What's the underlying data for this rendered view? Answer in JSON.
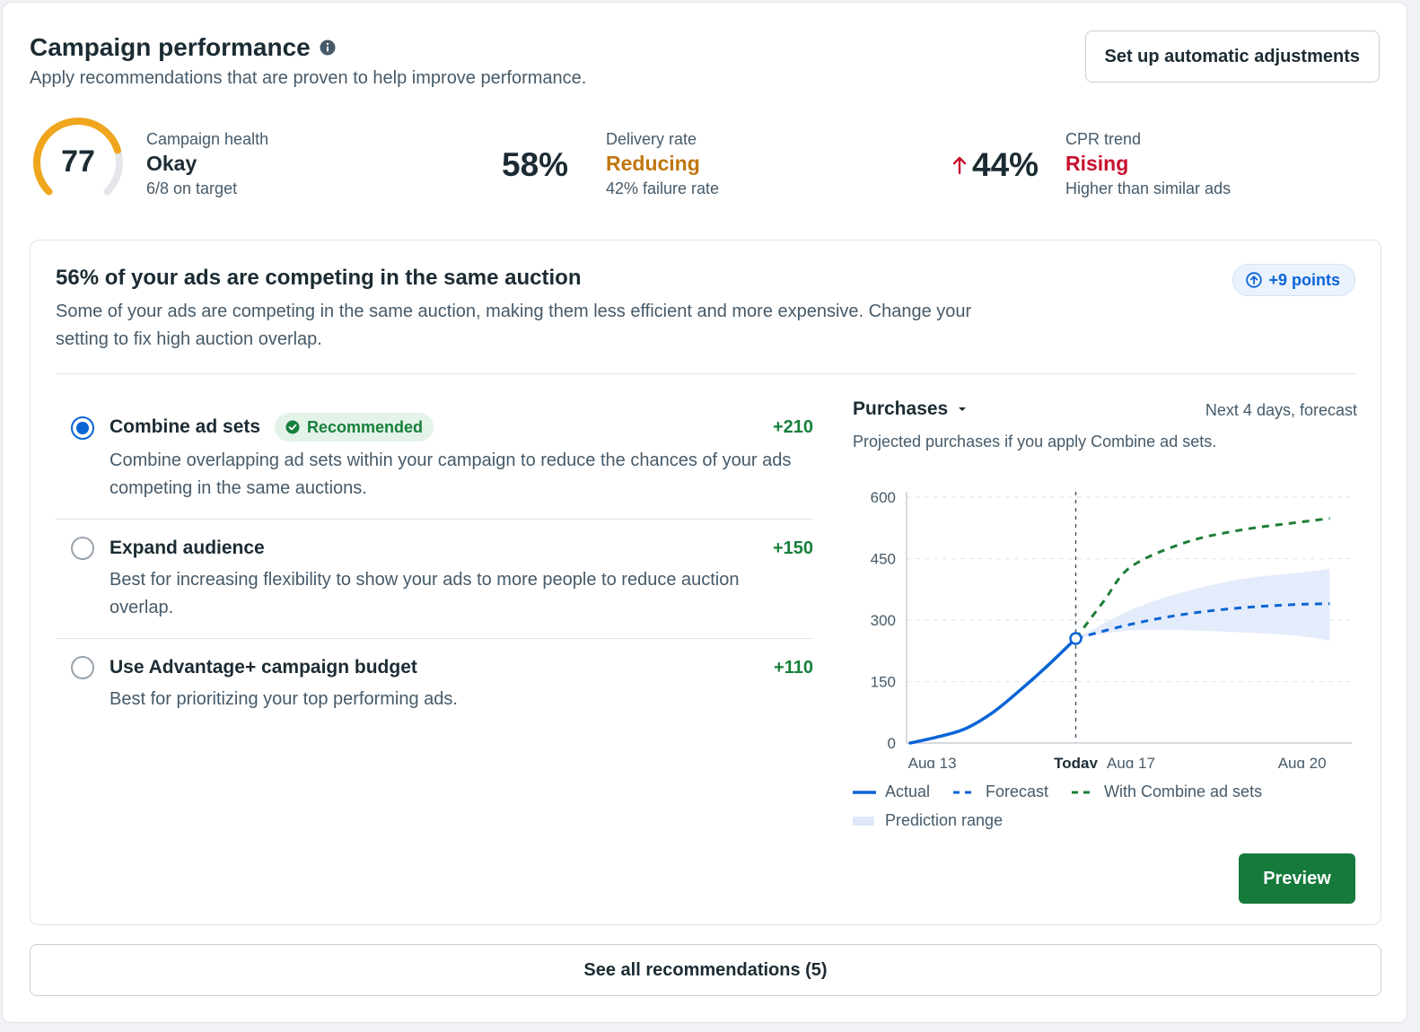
{
  "header": {
    "title": "Campaign performance",
    "subtitle": "Apply recommendations that are proven to help improve performance.",
    "auto_adjust_label": "Set up automatic adjustments"
  },
  "metrics": {
    "health": {
      "score": "77",
      "score_value": 77,
      "score_max": 100,
      "label": "Campaign health",
      "status": "Okay",
      "detail": "6/8 on target",
      "color": "#f0a61c"
    },
    "delivery": {
      "value": "58%",
      "label": "Delivery rate",
      "status": "Reducing",
      "detail": "42% failure rate",
      "color": "#c0760d"
    },
    "cpr": {
      "value": "44%",
      "label": "CPR trend",
      "status": "Rising",
      "detail": "Higher than similar ads",
      "color": "#c8102e",
      "trend_icon": "arrow-up-icon"
    }
  },
  "recommendation": {
    "title": "56% of your ads are competing in the same auction",
    "description": "Some of your ads are competing in the same auction, making them less efficient and more expensive. Change your setting to fix high auction overlap.",
    "points_label": "+9 points",
    "options": [
      {
        "title": "Combine ad sets",
        "badge": "Recommended",
        "delta": "+210",
        "description": "Combine overlapping ad sets within your campaign to reduce the chances of your ads competing in the same auctions.",
        "selected": true
      },
      {
        "title": "Expand audience",
        "delta": "+150",
        "description": "Best for increasing flexibility to show your ads to more people to reduce auction overlap.",
        "selected": false
      },
      {
        "title": "Use Advantage+ campaign budget",
        "delta": "+110",
        "description": "Best for prioritizing your top performing ads.",
        "selected": false
      }
    ],
    "chart_header": {
      "metric_label": "Purchases",
      "range_label": "Next 4 days, forecast",
      "subtitle": "Projected purchases if you apply Combine ad sets."
    },
    "legend": {
      "actual": "Actual",
      "forecast": "Forecast",
      "with_combine": "With Combine ad sets",
      "range": "Prediction range"
    },
    "preview_label": "Preview"
  },
  "footer": {
    "see_all_label": "See all recommendations (5)"
  },
  "colors": {
    "accent_blue": "#0a64d6",
    "green": "#157a3b",
    "range_fill": "#dfe8f9"
  },
  "chart_data": {
    "type": "line",
    "x_ticks": [
      "Aug 13",
      "Today",
      "Aug 17",
      "Aug 20"
    ],
    "today_label": "Today",
    "y_ticks": [
      0,
      150,
      300,
      450,
      600
    ],
    "ylim": [
      0,
      600
    ],
    "x_domain": [
      "Aug 13",
      "Aug 21"
    ],
    "today_x": "Aug 16",
    "series": [
      {
        "name": "Actual",
        "style": "solid",
        "color": "#0a64d6",
        "points": [
          [
            "Aug 13",
            0
          ],
          [
            "Aug 13.5",
            15
          ],
          [
            "Aug 14",
            35
          ],
          [
            "Aug 14.5",
            75
          ],
          [
            "Aug 15",
            130
          ],
          [
            "Aug 15.5",
            190
          ],
          [
            "Aug 16",
            255
          ]
        ]
      },
      {
        "name": "Forecast",
        "style": "dashed",
        "color": "#0a64d6",
        "points": [
          [
            "Aug 16",
            255
          ],
          [
            "Aug 17",
            290
          ],
          [
            "Aug 18",
            315
          ],
          [
            "Aug 19",
            330
          ],
          [
            "Aug 20",
            338
          ],
          [
            "Aug 20.6",
            340
          ]
        ]
      },
      {
        "name": "With Combine ad sets",
        "style": "dashed",
        "color": "#1e7d36",
        "points": [
          [
            "Aug 16",
            255
          ],
          [
            "Aug 16.5",
            345
          ],
          [
            "Aug 17",
            430
          ],
          [
            "Aug 18",
            490
          ],
          [
            "Aug 19",
            520
          ],
          [
            "Aug 20",
            538
          ],
          [
            "Aug 20.6",
            548
          ]
        ]
      }
    ],
    "prediction_range": {
      "name": "Prediction range",
      "upper": [
        [
          "Aug 16",
          255
        ],
        [
          "Aug 17",
          325
        ],
        [
          "Aug 18",
          370
        ],
        [
          "Aug 19",
          400
        ],
        [
          "Aug 20",
          415
        ],
        [
          "Aug 20.6",
          425
        ]
      ],
      "lower": [
        [
          "Aug 16",
          255
        ],
        [
          "Aug 17",
          275
        ],
        [
          "Aug 18",
          275
        ],
        [
          "Aug 19",
          270
        ],
        [
          "Aug 20",
          262
        ],
        [
          "Aug 20.6",
          250
        ]
      ]
    },
    "grid": "horizontal dashed"
  }
}
